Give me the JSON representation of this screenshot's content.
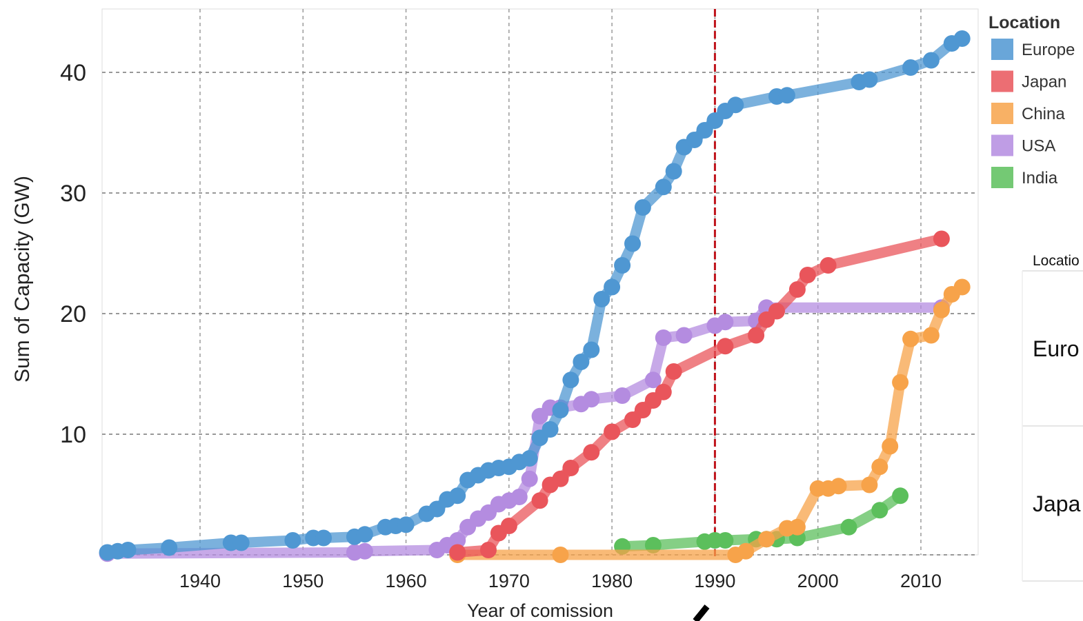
{
  "chart_data": {
    "type": "line",
    "xlabel": "Year of comission",
    "ylabel": "Sum of Capacity (GW)",
    "xlim": [
      1931,
      2016
    ],
    "ylim": [
      0,
      45
    ],
    "x_ticks": [
      1940,
      1950,
      1960,
      1970,
      1980,
      1990,
      2000,
      2010
    ],
    "y_ticks": [
      10,
      20,
      30,
      40
    ],
    "grid": true,
    "reference_line": {
      "x": 1990,
      "color": "#c0141c",
      "style": "dashed"
    },
    "legend": {
      "title": "Location",
      "position": "right"
    },
    "series": [
      {
        "name": "USA",
        "color": "#b48ce0",
        "points": [
          [
            1931,
            0.1
          ],
          [
            1955,
            0.2
          ],
          [
            1956,
            0.3
          ],
          [
            1963,
            0.4
          ],
          [
            1964,
            0.8
          ],
          [
            1965,
            1.2
          ],
          [
            1966,
            2.3
          ],
          [
            1967,
            3.0
          ],
          [
            1968,
            3.5
          ],
          [
            1969,
            4.2
          ],
          [
            1970,
            4.5
          ],
          [
            1971,
            4.8
          ],
          [
            1972,
            6.3
          ],
          [
            1973,
            11.5
          ],
          [
            1974,
            12.2
          ],
          [
            1975,
            12.2
          ],
          [
            1977,
            12.5
          ],
          [
            1978,
            12.9
          ],
          [
            1981,
            13.2
          ],
          [
            1984,
            14.5
          ],
          [
            1985,
            18.0
          ],
          [
            1987,
            18.2
          ],
          [
            1990,
            19.0
          ],
          [
            1991,
            19.3
          ],
          [
            1994,
            19.4
          ],
          [
            1995,
            20.5
          ],
          [
            2012,
            20.5
          ]
        ]
      },
      {
        "name": "India",
        "color": "#5cbf5c",
        "points": [
          [
            1981,
            0.7
          ],
          [
            1984,
            0.8
          ],
          [
            1989,
            1.1
          ],
          [
            1990,
            1.2
          ],
          [
            1991,
            1.2
          ],
          [
            1994,
            1.3
          ],
          [
            1995,
            1.3
          ],
          [
            1996,
            1.3
          ],
          [
            1998,
            1.4
          ],
          [
            2003,
            2.3
          ],
          [
            2006,
            3.7
          ],
          [
            2008,
            4.9
          ]
        ]
      },
      {
        "name": "China",
        "color": "#f7a34a",
        "points": [
          [
            1965,
            0.0
          ],
          [
            1975,
            0.0
          ],
          [
            1992,
            0.0
          ],
          [
            1993,
            0.3
          ],
          [
            1995,
            1.3
          ],
          [
            1997,
            2.2
          ],
          [
            1998,
            2.3
          ],
          [
            2000,
            5.5
          ],
          [
            2001,
            5.5
          ],
          [
            2002,
            5.7
          ],
          [
            2005,
            5.8
          ],
          [
            2006,
            7.3
          ],
          [
            2007,
            9.0
          ],
          [
            2008,
            14.3
          ],
          [
            2009,
            17.9
          ],
          [
            2011,
            18.2
          ],
          [
            2012,
            20.3
          ],
          [
            2013,
            21.6
          ],
          [
            2014,
            22.2
          ]
        ]
      },
      {
        "name": "Japan",
        "color": "#e9555b",
        "points": [
          [
            1965,
            0.2
          ],
          [
            1968,
            0.4
          ],
          [
            1969,
            1.8
          ],
          [
            1970,
            2.4
          ],
          [
            1973,
            4.5
          ],
          [
            1974,
            5.8
          ],
          [
            1975,
            6.3
          ],
          [
            1976,
            7.2
          ],
          [
            1978,
            8.5
          ],
          [
            1980,
            10.2
          ],
          [
            1982,
            11.2
          ],
          [
            1983,
            12.0
          ],
          [
            1984,
            12.8
          ],
          [
            1985,
            13.5
          ],
          [
            1986,
            15.2
          ],
          [
            1991,
            17.3
          ],
          [
            1994,
            18.2
          ],
          [
            1995,
            19.5
          ],
          [
            1996,
            20.2
          ],
          [
            1998,
            22.0
          ],
          [
            1999,
            23.2
          ],
          [
            2001,
            24.0
          ],
          [
            2012,
            26.2
          ]
        ]
      },
      {
        "name": "Europe",
        "color": "#4f97d2",
        "points": [
          [
            1931,
            0.2
          ],
          [
            1932,
            0.3
          ],
          [
            1933,
            0.4
          ],
          [
            1937,
            0.6
          ],
          [
            1943,
            1.0
          ],
          [
            1944,
            1.0
          ],
          [
            1949,
            1.2
          ],
          [
            1951,
            1.4
          ],
          [
            1952,
            1.4
          ],
          [
            1955,
            1.5
          ],
          [
            1956,
            1.7
          ],
          [
            1958,
            2.3
          ],
          [
            1959,
            2.4
          ],
          [
            1960,
            2.5
          ],
          [
            1962,
            3.4
          ],
          [
            1963,
            3.8
          ],
          [
            1964,
            4.6
          ],
          [
            1965,
            4.9
          ],
          [
            1966,
            6.2
          ],
          [
            1967,
            6.6
          ],
          [
            1968,
            7.0
          ],
          [
            1969,
            7.2
          ],
          [
            1970,
            7.3
          ],
          [
            1971,
            7.7
          ],
          [
            1972,
            8.0
          ],
          [
            1973,
            9.7
          ],
          [
            1974,
            10.4
          ],
          [
            1975,
            12.0
          ],
          [
            1976,
            14.5
          ],
          [
            1977,
            16.0
          ],
          [
            1978,
            17.0
          ],
          [
            1979,
            21.2
          ],
          [
            1980,
            22.2
          ],
          [
            1981,
            24.0
          ],
          [
            1982,
            25.8
          ],
          [
            1983,
            28.8
          ],
          [
            1985,
            30.5
          ],
          [
            1986,
            31.8
          ],
          [
            1987,
            33.8
          ],
          [
            1988,
            34.4
          ],
          [
            1989,
            35.2
          ],
          [
            1990,
            36.0
          ],
          [
            1991,
            36.8
          ],
          [
            1992,
            37.3
          ],
          [
            1996,
            38.0
          ],
          [
            1997,
            38.1
          ],
          [
            2004,
            39.2
          ],
          [
            2005,
            39.4
          ],
          [
            2009,
            40.4
          ],
          [
            2011,
            41.0
          ],
          [
            2013,
            42.4
          ],
          [
            2014,
            42.8
          ]
        ]
      }
    ],
    "legend_order": [
      "Europe",
      "Japan",
      "China",
      "USA",
      "India"
    ]
  },
  "side_table": {
    "header": "Locatio",
    "rows": [
      "Euro",
      "Japa"
    ]
  }
}
